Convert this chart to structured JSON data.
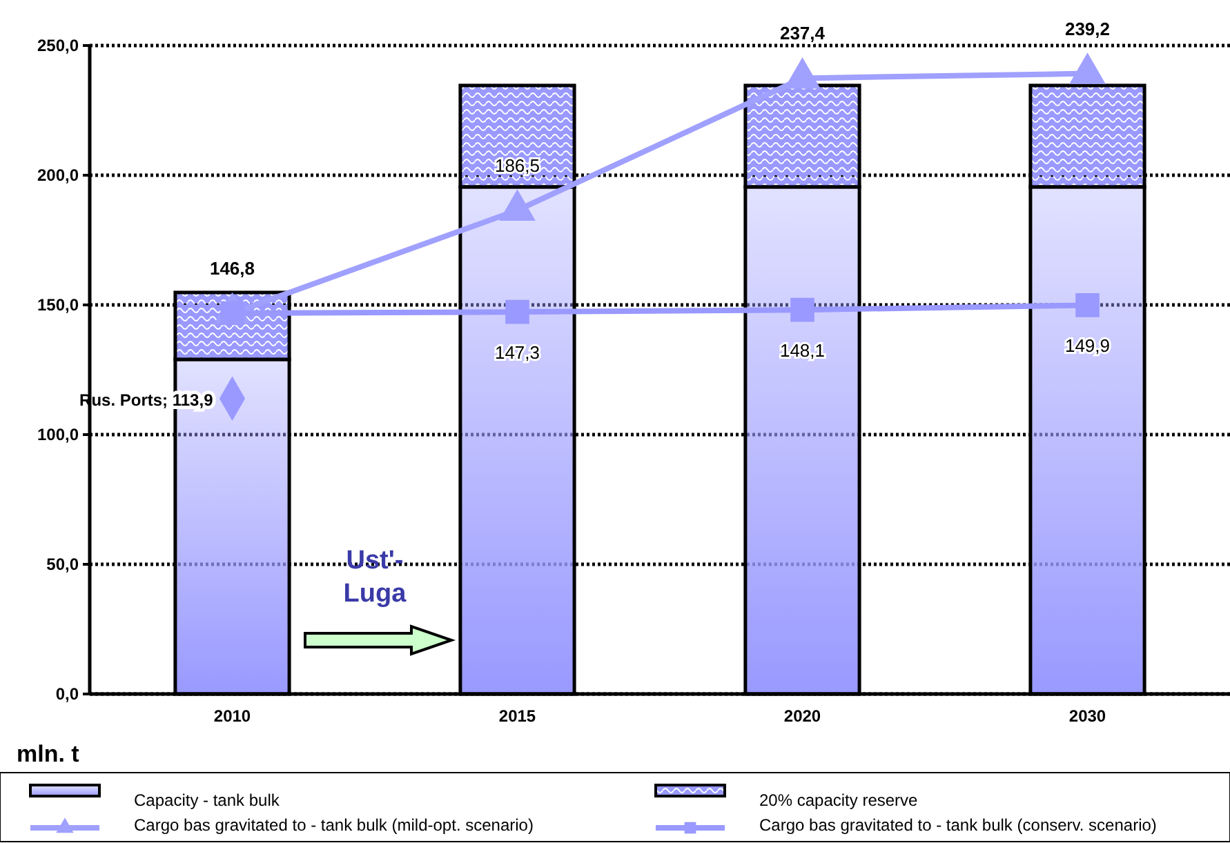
{
  "chart_data": {
    "type": "bar",
    "stacked": true,
    "ylabel": "mln. t",
    "categories": [
      "2010",
      "2015",
      "2020",
      "2030"
    ],
    "ylim": [
      0,
      250
    ],
    "yticks": [
      {
        "value": 0,
        "label": "0,0"
      },
      {
        "value": 50,
        "label": "50,0"
      },
      {
        "value": 100,
        "label": "100,0"
      },
      {
        "value": 150,
        "label": "150,0"
      },
      {
        "value": 200,
        "label": "200,0"
      },
      {
        "value": 250,
        "label": "250,0"
      }
    ],
    "grid": "y",
    "legend": "bottom",
    "series": [
      {
        "name": "Capacity - tank bulk",
        "color": "#9999ff",
        "values": [
          129,
          195.5,
          195.5,
          195.5
        ]
      },
      {
        "name": "20% capacity reserve",
        "color": "#9999ff",
        "values": [
          25.8,
          39.1,
          39.1,
          39.1
        ]
      },
      {
        "name": "Cargo bas gravitated to - tank bulk (mild-opt. scenario)",
        "type": "line",
        "marker": "triangle",
        "color": "#a0a0ff",
        "values": [
          146.8,
          186.5,
          237.4,
          239.2
        ],
        "value_labels": [
          "146,8",
          "186,5",
          "237,4",
          "239,2"
        ]
      },
      {
        "name": "Cargo bas gravitated to - tank bulk (conserv. scenario)",
        "type": "line",
        "marker": "square",
        "color": "#9999ff",
        "values": [
          146.8,
          147.3,
          148.1,
          149.9
        ],
        "value_labels": [
          null,
          "147,3",
          "148,1",
          "149,9"
        ]
      },
      {
        "type": "scatter",
        "marker": "diamond",
        "color": "#9999ff",
        "values": [
          113.9,
          null,
          null,
          null
        ],
        "value_labels": [
          "Rus. Ports; 113,9",
          null,
          null,
          null
        ]
      }
    ],
    "annotations": [
      "Ust'-Luga"
    ]
  }
}
